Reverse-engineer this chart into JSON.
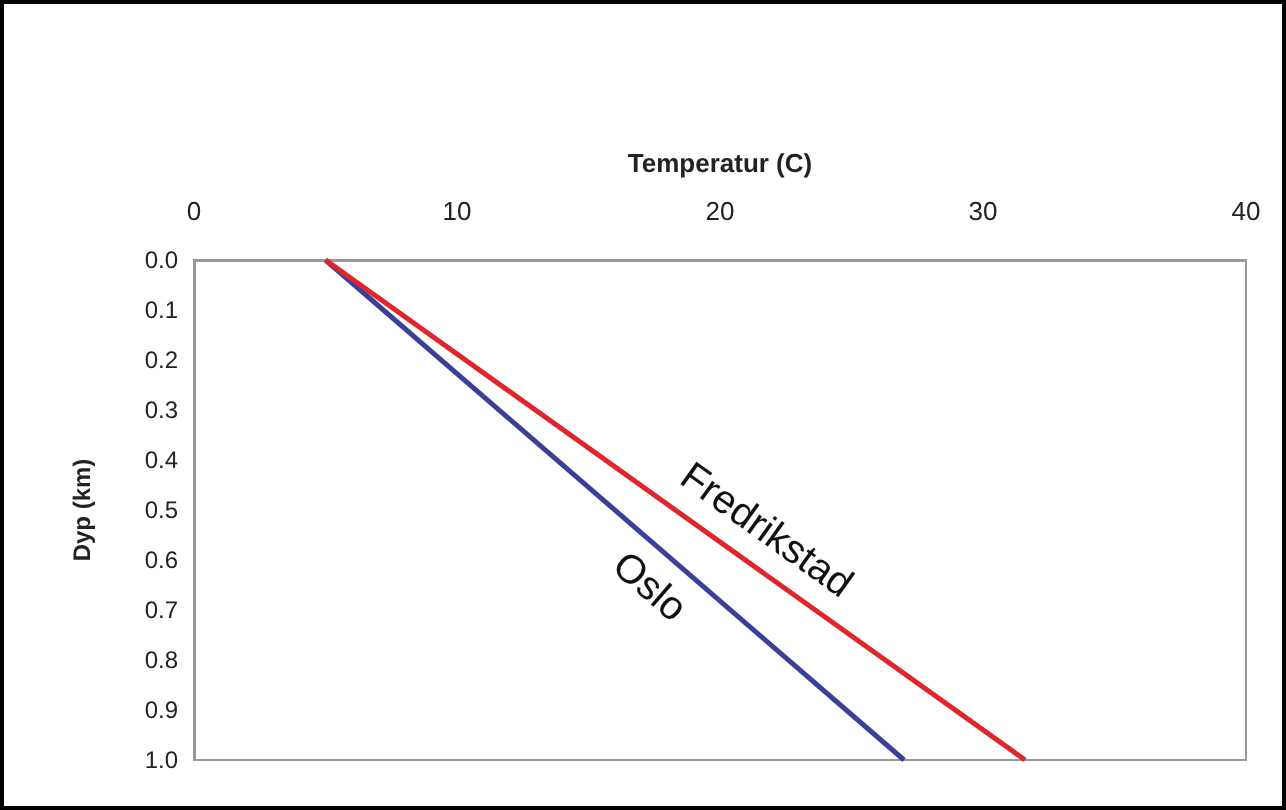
{
  "chart_data": {
    "type": "line",
    "xlabel": "Temperatur (C)",
    "ylabel": "Dyp (km)",
    "series": [
      {
        "name": "Oslo",
        "color": "#3a3f9a",
        "x": [
          5,
          27
        ],
        "values": [
          0.0,
          1.0
        ]
      },
      {
        "name": "Fredrikstad",
        "color": "#e0262a",
        "x": [
          5,
          31.6
        ],
        "values": [
          0.0,
          1.0
        ]
      }
    ],
    "xlim": [
      0,
      40
    ],
    "xticks": [
      0,
      10,
      20,
      30,
      40
    ],
    "ylim": [
      1.0,
      0.0
    ],
    "yticks": [
      {
        "value": 0,
        "label": "0.0"
      },
      {
        "value": 0.1,
        "label": "0.1"
      },
      {
        "value": 0.2,
        "label": "0.2"
      },
      {
        "value": 0.3,
        "label": "0.3"
      },
      {
        "value": 0.4,
        "label": "0.4"
      },
      {
        "value": 0.5,
        "label": "0.5"
      },
      {
        "value": 0.6,
        "label": "0.6"
      },
      {
        "value": 0.7,
        "label": "0.7"
      },
      {
        "value": 0.8,
        "label": "0.8"
      },
      {
        "value": 0.9,
        "label": "0.9"
      },
      {
        "value": 1.0,
        "label": "1.0"
      }
    ],
    "grid": false,
    "legend": false,
    "marker": "none",
    "line_style": "solid"
  }
}
